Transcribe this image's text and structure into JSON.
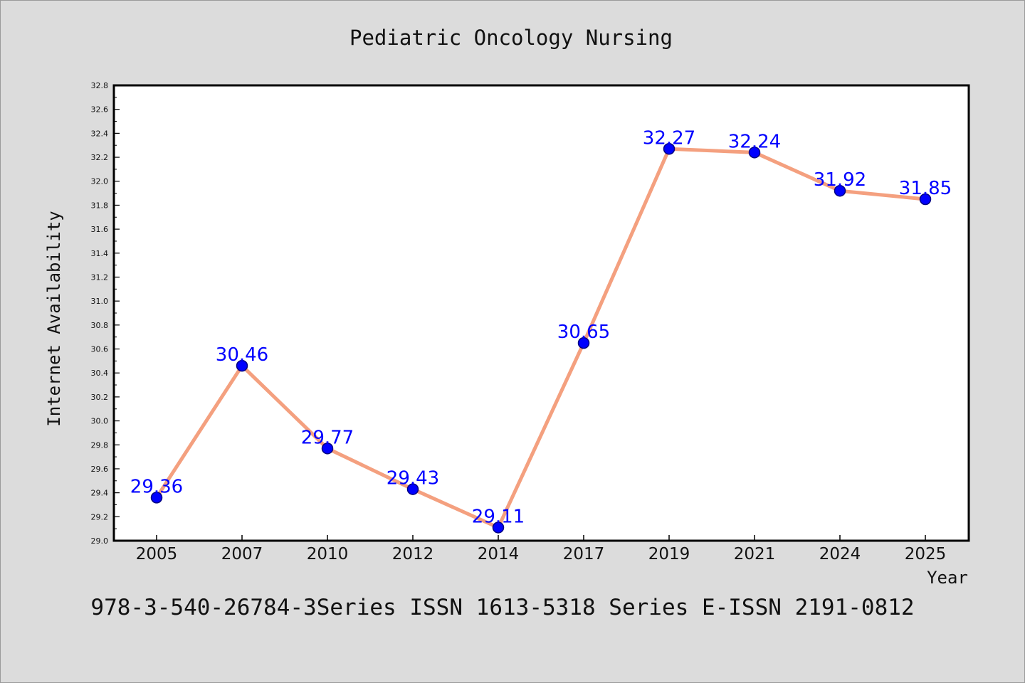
{
  "chart_data": {
    "type": "line",
    "title": "Pediatric Oncology Nursing",
    "xlabel": "Year",
    "ylabel": "Internet Availability",
    "categories": [
      "2005",
      "2007",
      "2010",
      "2012",
      "2014",
      "2017",
      "2019",
      "2021",
      "2024",
      "2025"
    ],
    "series": [
      {
        "values": [
          29.36,
          30.46,
          29.77,
          29.43,
          29.11,
          30.65,
          32.27,
          32.24,
          31.92,
          31.85
        ]
      }
    ],
    "data_labels": [
      "29.36",
      "30.46",
      "29.77",
      "29.43",
      "29.11",
      "30.65",
      "32.27",
      "32.24",
      "31.92",
      "31.85"
    ],
    "ylim": [
      29.0,
      32.8
    ],
    "y_ticks": [
      "29.0",
      "29.2",
      "29.4",
      "29.6",
      "29.8",
      "30.0",
      "30.2",
      "30.4",
      "30.6",
      "30.8",
      "31.0",
      "31.2",
      "31.4",
      "31.6",
      "31.8",
      "32.0",
      "32.2",
      "32.4",
      "32.6",
      "32.8"
    ],
    "grid": false,
    "legend": "none",
    "colors": {
      "line": "#f4a07f",
      "marker": "#0000ff",
      "marker_edge": "#000080",
      "data_label": "#0000ff",
      "background": "#dcdcdc",
      "plot_background": "#ffffff"
    }
  },
  "footer": {
    "text": "978-3-540-26784-3Series ISSN 1613-5318 Series E-ISSN 2191-0812"
  }
}
